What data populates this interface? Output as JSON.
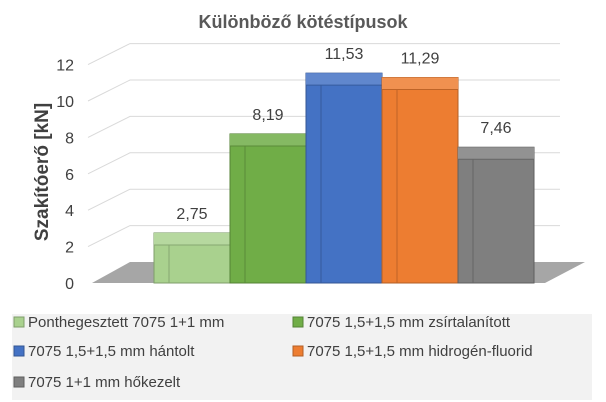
{
  "chart_data": {
    "type": "bar",
    "title": "Különböző kötéstípusok",
    "ylabel": "Szakítóerő [kN]",
    "xlabel": "",
    "ylim": [
      0,
      12
    ],
    "yticks": [
      0,
      2,
      4,
      6,
      8,
      10,
      12
    ],
    "grid": true,
    "legend_position": "bottom",
    "style": "3d-column",
    "series": [
      {
        "name": "Ponthegesztett 7075 1+1 mm",
        "value": 2.75,
        "label": "2,75",
        "color": "#a9d18e"
      },
      {
        "name": "7075 1,5+1,5 mm zsírtalanított",
        "value": 8.19,
        "label": "8,19",
        "color": "#70ad47"
      },
      {
        "name": "7075 1,5+1,5 mm hántolt",
        "value": 11.53,
        "label": "11,53",
        "color": "#4472c4"
      },
      {
        "name": "7075 1,5+1,5 mm hidrogén-fluorid",
        "value": 11.29,
        "label": "11,29",
        "color": "#ed7d31"
      },
      {
        "name": "7075 1+1 mm hőkezelt",
        "value": 7.46,
        "label": "7,46",
        "color": "#7f7f7f"
      }
    ]
  }
}
